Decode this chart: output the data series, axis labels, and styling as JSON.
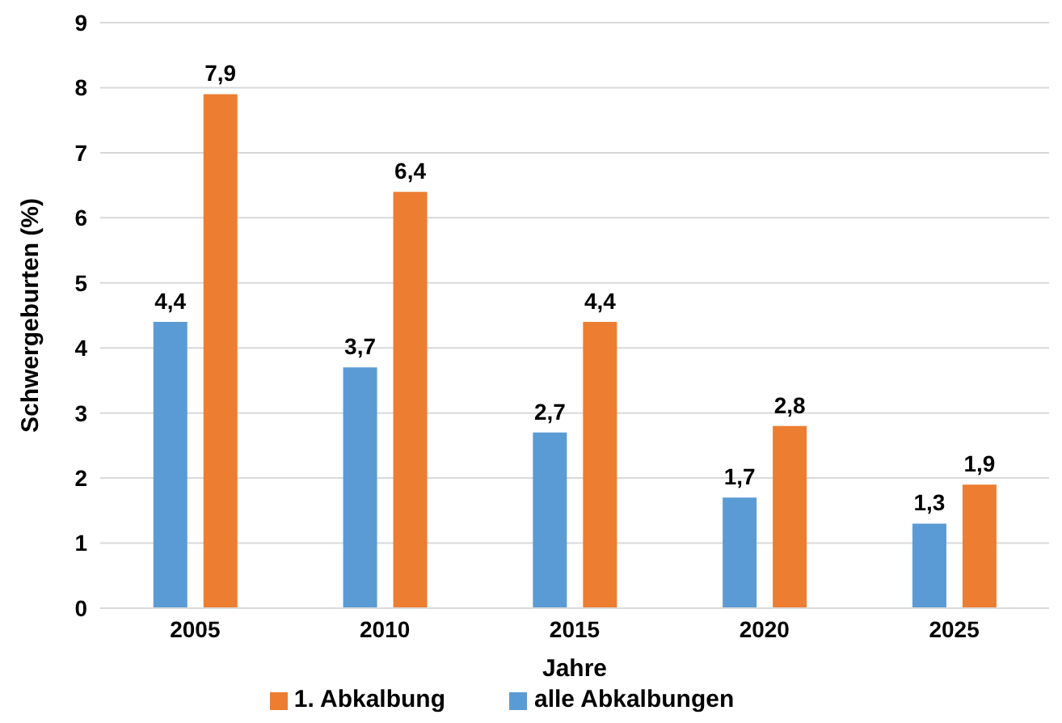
{
  "chart_data": {
    "type": "bar",
    "xlabel": "Jahre",
    "ylabel": "Schwergeburten (%)",
    "categories": [
      "2005",
      "2010",
      "2015",
      "2020",
      "2025"
    ],
    "series": [
      {
        "name": "alle Abkalbungen",
        "color": "#5b9bd5",
        "values": [
          4.4,
          3.7,
          2.7,
          1.7,
          1.3
        ],
        "value_labels": [
          "4,4",
          "3,7",
          "2,7",
          "1,7",
          "1,3"
        ]
      },
      {
        "name": "1. Abkalbung",
        "color": "#ed7d31",
        "values": [
          7.9,
          6.4,
          4.4,
          2.8,
          1.9
        ],
        "value_labels": [
          "7,9",
          "6,4",
          "4,4",
          "2,8",
          "1,9"
        ]
      }
    ],
    "ylim": [
      0,
      9
    ],
    "yticks": [
      0,
      1,
      2,
      3,
      4,
      5,
      6,
      7,
      8,
      9
    ],
    "grid": "y",
    "legend": "bottom"
  }
}
